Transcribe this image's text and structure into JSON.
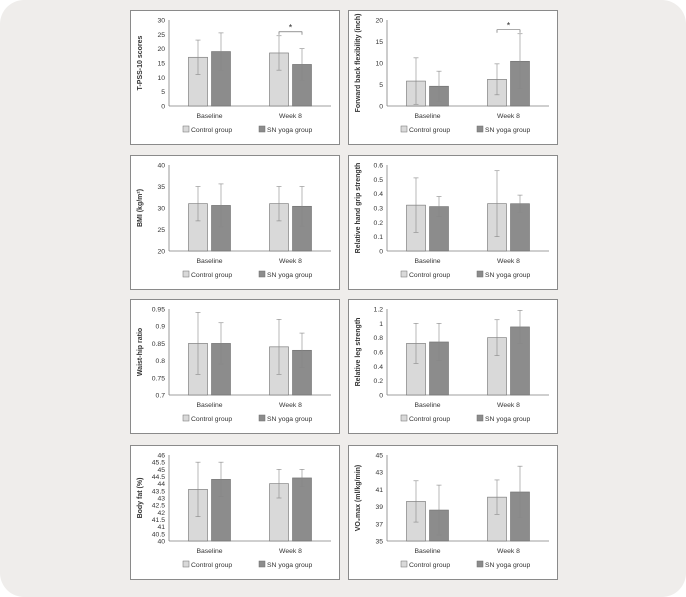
{
  "colors": {
    "frame_bg": "#efedeb",
    "control": "#d9d9d9",
    "yoga": "#8c8c8c",
    "axis": "#7f7f7f",
    "error": "#888888"
  },
  "legend": {
    "control": "Control group",
    "yoga": "SN yoga group"
  },
  "chart_data": [
    {
      "type": "bar",
      "ylabel": "T-PSS-10 scores",
      "categories": [
        "Baseline",
        "Week 8"
      ],
      "ylim": [
        0,
        30
      ],
      "yticks": [
        "0",
        "5",
        "10",
        "15",
        "20",
        "25",
        "30"
      ],
      "series": [
        {
          "name": "Control group",
          "values": [
            17,
            18.5
          ],
          "errors": [
            6,
            6
          ]
        },
        {
          "name": "SN yoga group",
          "values": [
            19,
            14.5
          ],
          "errors": [
            6.5,
            5.5
          ]
        }
      ],
      "annotation": "*"
    },
    {
      "type": "bar",
      "ylabel": "Forward back flexibility (inch)",
      "categories": [
        "Baseline",
        "Week 8"
      ],
      "ylim": [
        0,
        20
      ],
      "yticks": [
        "0",
        "5",
        "10",
        "15",
        "20"
      ],
      "series": [
        {
          "name": "Control group",
          "values": [
            5.8,
            6.2
          ],
          "errors": [
            5.4,
            3.6
          ]
        },
        {
          "name": "SN yoga group",
          "values": [
            4.6,
            10.4
          ],
          "errors": [
            3.5,
            6.4
          ]
        }
      ],
      "annotation": "*"
    },
    {
      "type": "bar",
      "ylabel": "BMI (kg/m²)",
      "categories": [
        "Baseline",
        "Week 8"
      ],
      "ylim": [
        20,
        40
      ],
      "yticks": [
        "20",
        "25",
        "30",
        "35",
        "40"
      ],
      "series": [
        {
          "name": "Control group",
          "values": [
            31,
            31
          ],
          "errors": [
            4,
            4
          ]
        },
        {
          "name": "SN yoga group",
          "values": [
            30.6,
            30.4
          ],
          "errors": [
            5,
            4.6
          ]
        }
      ]
    },
    {
      "type": "bar",
      "ylabel": "Relative hand grip strength",
      "categories": [
        "Baseline",
        "Week 8"
      ],
      "ylim": [
        0,
        0.6
      ],
      "yticks": [
        "0",
        "0.1",
        "0.2",
        "0.3",
        "0.4",
        "0.5",
        "0.6"
      ],
      "series": [
        {
          "name": "Control group",
          "values": [
            0.32,
            0.33
          ],
          "errors": [
            0.19,
            0.23
          ]
        },
        {
          "name": "SN yoga group",
          "values": [
            0.31,
            0.33
          ],
          "errors": [
            0.07,
            0.06
          ]
        }
      ]
    },
    {
      "type": "bar",
      "ylabel": "Waist-hip ratio",
      "categories": [
        "Baseline",
        "Week 8"
      ],
      "ylim": [
        0.7,
        0.95
      ],
      "yticks": [
        "0.7",
        "0.75",
        "0.8",
        "0.85",
        "0.9",
        "0.95"
      ],
      "series": [
        {
          "name": "Control group",
          "values": [
            0.85,
            0.84
          ],
          "errors": [
            0.09,
            0.08
          ]
        },
        {
          "name": "SN yoga group",
          "values": [
            0.85,
            0.83
          ],
          "errors": [
            0.06,
            0.05
          ]
        }
      ]
    },
    {
      "type": "bar",
      "ylabel": "Relative leg strength",
      "categories": [
        "Baseline",
        "Week 8"
      ],
      "ylim": [
        0,
        1.2
      ],
      "yticks": [
        "0",
        "0.2",
        "0.4",
        "0.6",
        "0.8",
        "1",
        "1.2"
      ],
      "series": [
        {
          "name": "Control group",
          "values": [
            0.72,
            0.8
          ],
          "errors": [
            0.28,
            0.25
          ]
        },
        {
          "name": "SN yoga group",
          "values": [
            0.74,
            0.95
          ],
          "errors": [
            0.26,
            0.23
          ]
        }
      ]
    },
    {
      "type": "bar",
      "ylabel": "Body fat (%)",
      "categories": [
        "Baseline",
        "Week 8"
      ],
      "ylim": [
        40,
        46
      ],
      "yticks": [
        "40",
        "40.5",
        "41",
        "41.5",
        "42",
        "42.5",
        "43",
        "43.5",
        "44",
        "44.5",
        "45",
        "45.5",
        "46"
      ],
      "series": [
        {
          "name": "Control group",
          "values": [
            43.6,
            44
          ],
          "errors": [
            1.9,
            1
          ]
        },
        {
          "name": "SN yoga group",
          "values": [
            44.3,
            44.4
          ],
          "errors": [
            1.2,
            0.6
          ]
        }
      ]
    },
    {
      "type": "bar",
      "ylabel": "VO₂max (ml/kg/min)",
      "categories": [
        "Baseline",
        "Week 8"
      ],
      "ylim": [
        35,
        45
      ],
      "yticks": [
        "35",
        "37",
        "39",
        "41",
        "43",
        "45"
      ],
      "series": [
        {
          "name": "Control group",
          "values": [
            39.6,
            40.1
          ],
          "errors": [
            2.4,
            2
          ]
        },
        {
          "name": "SN yoga group",
          "values": [
            38.6,
            40.7
          ],
          "errors": [
            2.9,
            3
          ]
        }
      ]
    }
  ]
}
